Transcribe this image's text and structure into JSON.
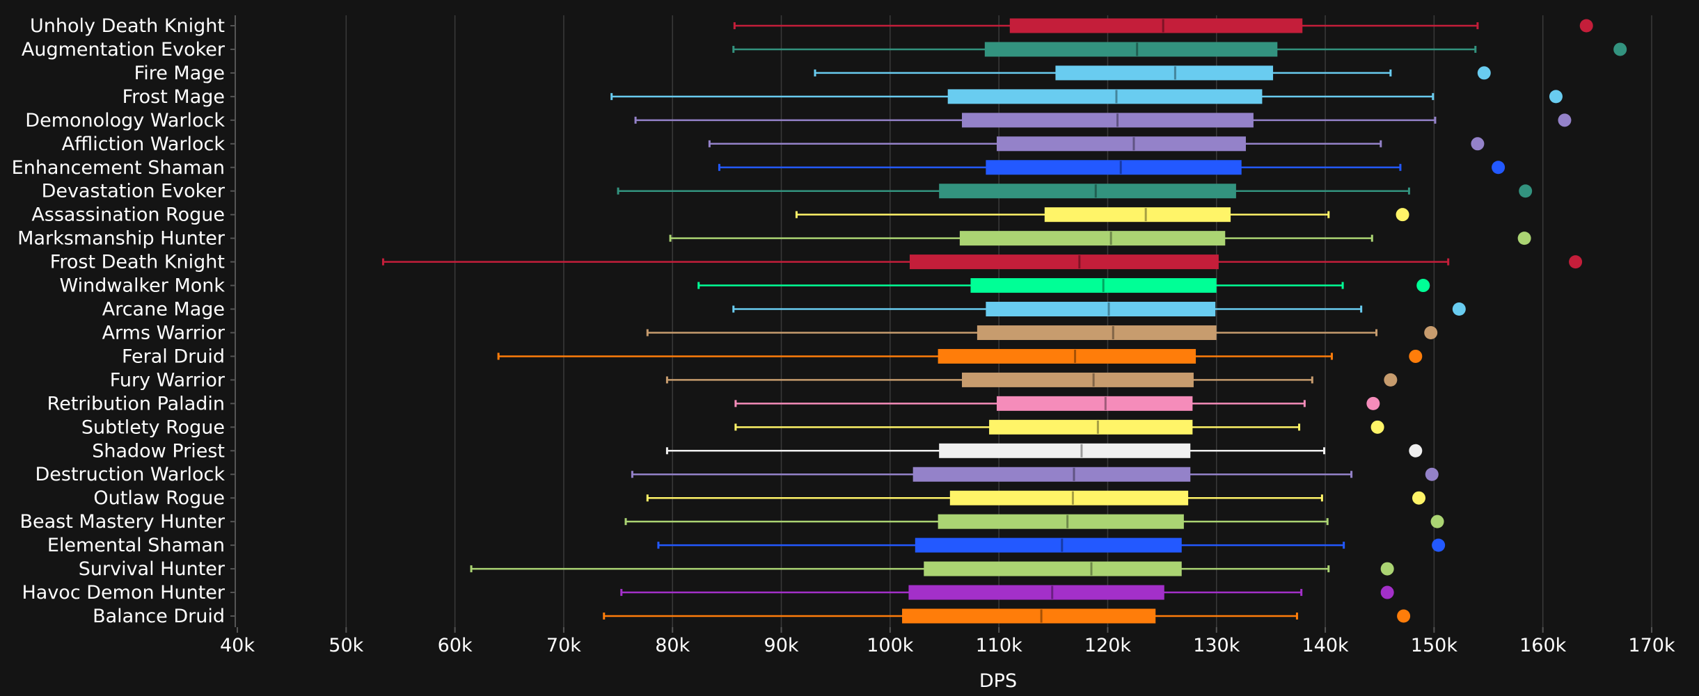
{
  "chart_data": {
    "type": "box",
    "title": "",
    "xlabel": "DPS",
    "ylabel": "",
    "xlim": [
      40000,
      170000
    ],
    "xticks": [
      40000,
      50000,
      60000,
      70000,
      80000,
      90000,
      100000,
      110000,
      120000,
      130000,
      140000,
      150000,
      160000,
      170000
    ],
    "xtick_labels": [
      "40k",
      "50k",
      "60k",
      "70k",
      "80k",
      "90k",
      "100k",
      "110k",
      "120k",
      "130k",
      "140k",
      "150k",
      "160k",
      "170k"
    ],
    "grid": "vertical",
    "legend": "none",
    "series": [
      {
        "name": "Unholy Death Knight",
        "color": "#C41E3A",
        "min": 85700,
        "q1": 111000,
        "median": 125100,
        "q3": 137900,
        "max": 154000,
        "max_point": 164000
      },
      {
        "name": "Augmentation Evoker",
        "color": "#33937F",
        "min": 85600,
        "q1": 108700,
        "median": 122700,
        "q3": 135600,
        "max": 153800,
        "max_point": 167100
      },
      {
        "name": "Fire Mage",
        "color": "#69CCF0",
        "min": 93100,
        "q1": 115200,
        "median": 126200,
        "q3": 135200,
        "max": 146000,
        "max_point": 154600
      },
      {
        "name": "Frost Mage",
        "color": "#69CCF0",
        "min": 74400,
        "q1": 105300,
        "median": 120800,
        "q3": 134200,
        "max": 149900,
        "max_point": 161200
      },
      {
        "name": "Demonology Warlock",
        "color": "#9482C9",
        "min": 76600,
        "q1": 106600,
        "median": 120900,
        "q3": 133400,
        "max": 150100,
        "max_point": 162000
      },
      {
        "name": "Affliction Warlock",
        "color": "#9482C9",
        "min": 83400,
        "q1": 109800,
        "median": 122400,
        "q3": 132700,
        "max": 145100,
        "max_point": 154000
      },
      {
        "name": "Enhancement Shaman",
        "color": "#2359FF",
        "min": 84300,
        "q1": 108800,
        "median": 121200,
        "q3": 132300,
        "max": 146900,
        "max_point": 155900
      },
      {
        "name": "Devastation Evoker",
        "color": "#33937F",
        "min": 75000,
        "q1": 104500,
        "median": 118900,
        "q3": 131800,
        "max": 147700,
        "max_point": 158400
      },
      {
        "name": "Assassination Rogue",
        "color": "#FFF468",
        "min": 91400,
        "q1": 114200,
        "median": 123500,
        "q3": 131300,
        "max": 140300,
        "max_point": 147100
      },
      {
        "name": "Marksmanship Hunter",
        "color": "#ABD473",
        "min": 79800,
        "q1": 106400,
        "median": 120300,
        "q3": 130800,
        "max": 144300,
        "max_point": 158300
      },
      {
        "name": "Frost Death Knight",
        "color": "#C41E3A",
        "min": 53400,
        "q1": 101800,
        "median": 117400,
        "q3": 130200,
        "max": 151300,
        "max_point": 163000
      },
      {
        "name": "Windwalker Monk",
        "color": "#00FF96",
        "min": 82400,
        "q1": 107400,
        "median": 119600,
        "q3": 130000,
        "max": 141600,
        "max_point": 149000
      },
      {
        "name": "Arcane Mage",
        "color": "#69CCF0",
        "min": 85600,
        "q1": 108800,
        "median": 120100,
        "q3": 129900,
        "max": 143300,
        "max_point": 152300
      },
      {
        "name": "Arms Warrior",
        "color": "#C79C6E",
        "min": 77700,
        "q1": 108000,
        "median": 120500,
        "q3": 130000,
        "max": 144700,
        "max_point": 149700
      },
      {
        "name": "Feral Druid",
        "color": "#FF7D0A",
        "min": 64000,
        "q1": 104400,
        "median": 117000,
        "q3": 128100,
        "max": 140600,
        "max_point": 148300
      },
      {
        "name": "Fury Warrior",
        "color": "#C79C6E",
        "min": 79500,
        "q1": 106600,
        "median": 118700,
        "q3": 127900,
        "max": 138800,
        "max_point": 146000
      },
      {
        "name": "Retribution Paladin",
        "color": "#F58CBA",
        "min": 85800,
        "q1": 109800,
        "median": 119800,
        "q3": 127800,
        "max": 138100,
        "max_point": 144400
      },
      {
        "name": "Subtlety Rogue",
        "color": "#FFF468",
        "min": 85800,
        "q1": 109100,
        "median": 119100,
        "q3": 127800,
        "max": 137600,
        "max_point": 144800
      },
      {
        "name": "Shadow Priest",
        "color": "#F0F0F0",
        "min": 79500,
        "q1": 104500,
        "median": 117600,
        "q3": 127600,
        "max": 139900,
        "max_point": 148300
      },
      {
        "name": "Destruction Warlock",
        "color": "#9482C9",
        "min": 76300,
        "q1": 102100,
        "median": 116900,
        "q3": 127600,
        "max": 142400,
        "max_point": 149800
      },
      {
        "name": "Outlaw Rogue",
        "color": "#FFF468",
        "min": 77700,
        "q1": 105500,
        "median": 116800,
        "q3": 127400,
        "max": 139700,
        "max_point": 148600
      },
      {
        "name": "Beast Mastery Hunter",
        "color": "#ABD473",
        "min": 75700,
        "q1": 104400,
        "median": 116300,
        "q3": 127000,
        "max": 140200,
        "max_point": 150300
      },
      {
        "name": "Elemental Shaman",
        "color": "#2359FF",
        "min": 78700,
        "q1": 102300,
        "median": 115800,
        "q3": 126800,
        "max": 141700,
        "max_point": 150400
      },
      {
        "name": "Survival Hunter",
        "color": "#ABD473",
        "min": 61500,
        "q1": 103100,
        "median": 118500,
        "q3": 126800,
        "max": 140300,
        "max_point": 145700
      },
      {
        "name": "Havoc Demon Hunter",
        "color": "#A330C9",
        "min": 75300,
        "q1": 101700,
        "median": 114900,
        "q3": 125200,
        "max": 137800,
        "max_point": 145700
      },
      {
        "name": "Balance Druid",
        "color": "#FF7D0A",
        "min": 73700,
        "q1": 101100,
        "median": 113900,
        "q3": 124400,
        "max": 137400,
        "max_point": 147200
      }
    ]
  }
}
